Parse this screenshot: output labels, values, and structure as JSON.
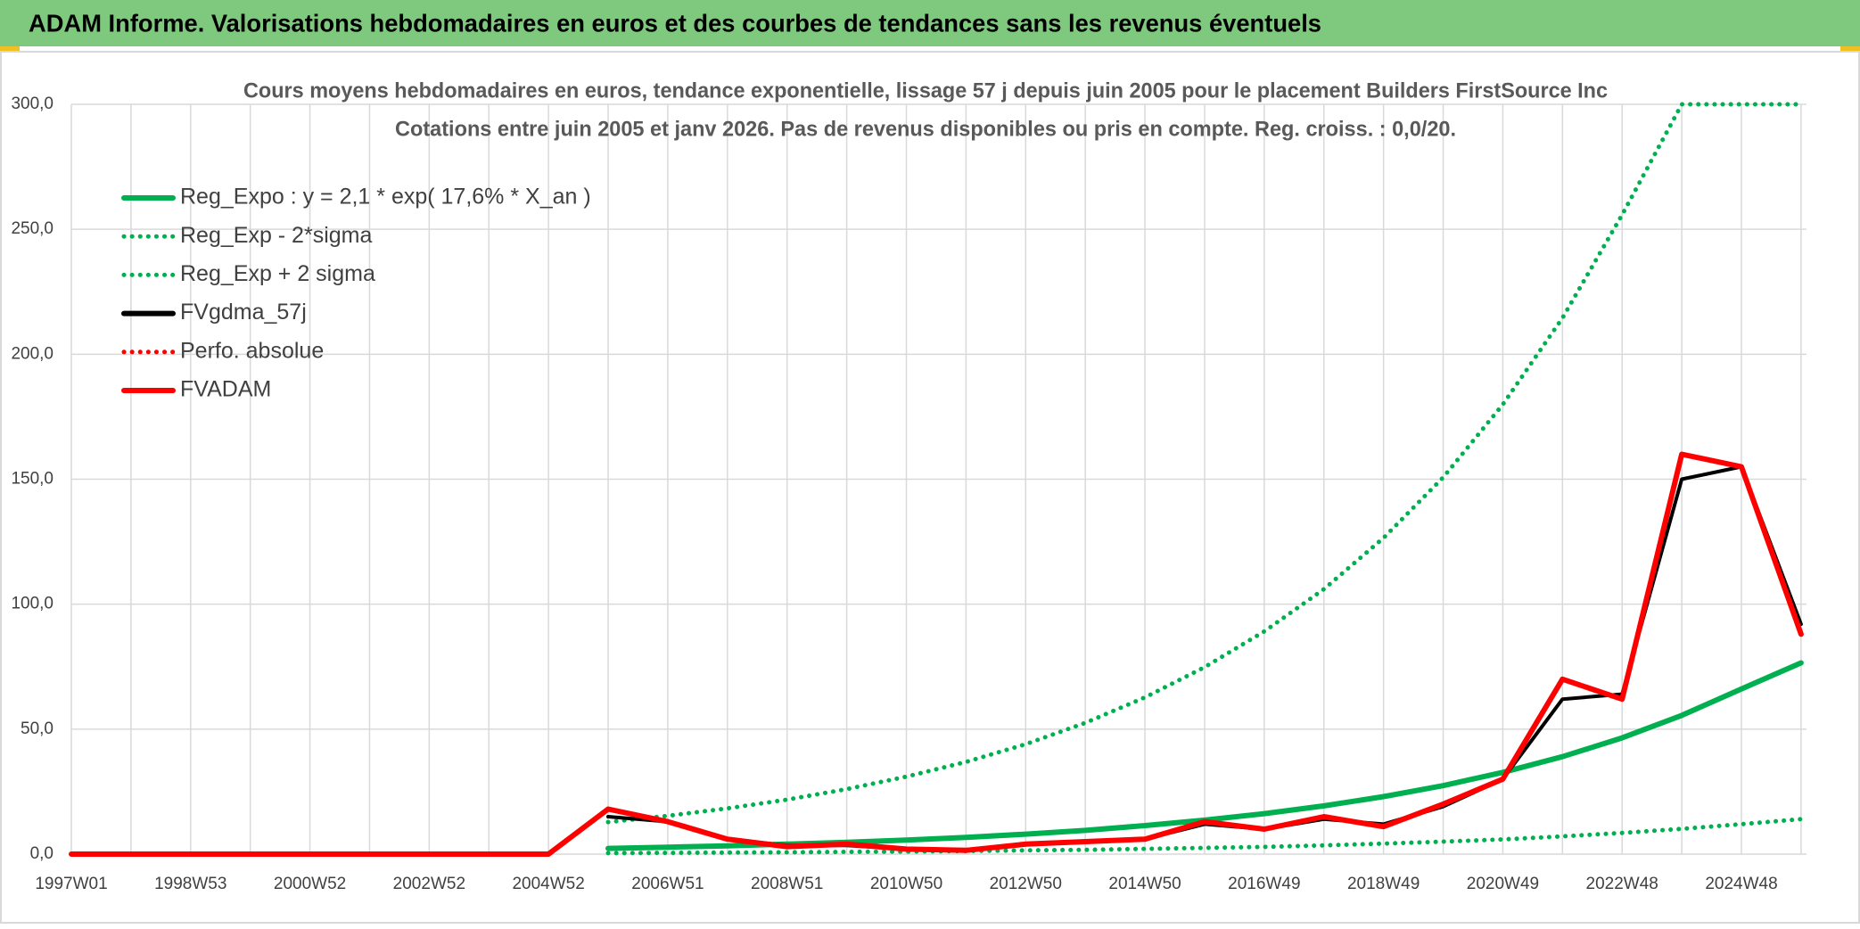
{
  "header": "ADAM Informe. Valorisations hebdomadaires en euros et des courbes de tendances sans les revenus éventuels",
  "chart_data": {
    "type": "line",
    "title": "Cours moyens hebdomadaires en euros, tendance exponentielle, lissage 57 j depuis juin 2005 pour le placement Builders FirstSource Inc",
    "subtitle": "Cotations entre juin 2005 et janv 2026. Pas de revenus disponibles ou pris en compte. Reg. croiss. : 0,0/20.",
    "categories": [
      "1997W01",
      null,
      "1998W53",
      null,
      "2000W52",
      null,
      "2002W52",
      null,
      "2004W52",
      null,
      "2006W51",
      null,
      "2008W51",
      null,
      "2010W50",
      null,
      "2012W50",
      null,
      "2014W50",
      null,
      "2016W49",
      null,
      "2018W49",
      null,
      "2020W49",
      null,
      "2022W48",
      null,
      "2024W48",
      null
    ],
    "ylim": [
      0,
      300
    ],
    "yticks": [
      {
        "value": 0,
        "label": "0,0"
      },
      {
        "value": 50,
        "label": "50,0"
      },
      {
        "value": 100,
        "label": "100,0"
      },
      {
        "value": 150,
        "label": "150,0"
      },
      {
        "value": 200,
        "label": "200,0"
      },
      {
        "value": 250,
        "label": "250,0"
      },
      {
        "value": 300,
        "label": "300,0"
      }
    ],
    "grid": true,
    "legend": "top-left",
    "series": [
      {
        "name": "Reg_Expo : y = 2,1 * exp( 17,6% *  X_an )",
        "color": "#00b050",
        "style": "solid",
        "values": [
          null,
          null,
          null,
          null,
          null,
          null,
          null,
          null,
          null,
          2.3,
          2.8,
          3.3,
          4.0,
          4.7,
          5.6,
          6.7,
          8.0,
          9.5,
          11.4,
          13.6,
          16.2,
          19.3,
          23.0,
          27.4,
          32.7,
          39.0,
          46.5,
          55.5,
          66.1,
          76.5
        ]
      },
      {
        "name": "Reg_Exp - 2*sigma",
        "color": "#00b050",
        "style": "dotted",
        "values": [
          null,
          null,
          null,
          null,
          null,
          null,
          null,
          null,
          null,
          0.4,
          0.5,
          0.6,
          0.7,
          0.9,
          1.0,
          1.2,
          1.5,
          1.7,
          2.1,
          2.5,
          2.9,
          3.5,
          4.2,
          5.0,
          5.9,
          7.1,
          8.5,
          10.1,
          12.0,
          14.0
        ]
      },
      {
        "name": "Reg_Exp + 2 sigma",
        "color": "#00b050",
        "style": "dotted",
        "values": [
          null,
          null,
          null,
          null,
          null,
          null,
          null,
          null,
          null,
          12.8,
          15.3,
          18.3,
          21.8,
          26.0,
          31.0,
          36.9,
          44.0,
          52.5,
          62.7,
          74.8,
          89.1,
          106.0,
          126.5,
          150.7,
          179.9,
          214.5,
          255.8,
          300,
          300,
          300
        ]
      },
      {
        "name": "FVgdma_57j",
        "color": "#000000",
        "style": "solid",
        "values": [
          null,
          null,
          null,
          null,
          null,
          null,
          null,
          null,
          null,
          15,
          13,
          6,
          3.5,
          3.5,
          2,
          1.8,
          4,
          5,
          6,
          12,
          10,
          14,
          12,
          19,
          30,
          62,
          64,
          150,
          155,
          92
        ]
      },
      {
        "name": "Perfo. absolue",
        "color": "#ff0000",
        "style": "dotted",
        "values": [
          0,
          0,
          0,
          0,
          0,
          0,
          0,
          0,
          0,
          18,
          13,
          6,
          3,
          4,
          2,
          1.5,
          4,
          5,
          6,
          13,
          10,
          15,
          11,
          20,
          30,
          70,
          62,
          160,
          155,
          88
        ]
      },
      {
        "name": "FVADAM",
        "color": "#ff0000",
        "style": "solid",
        "values": [
          0,
          0,
          0,
          0,
          0,
          0,
          0,
          0,
          0,
          18,
          13,
          6,
          3,
          4,
          2,
          1.5,
          4,
          5,
          6,
          13,
          10,
          15,
          11,
          20,
          30,
          70,
          62,
          160,
          155,
          88
        ]
      }
    ]
  }
}
